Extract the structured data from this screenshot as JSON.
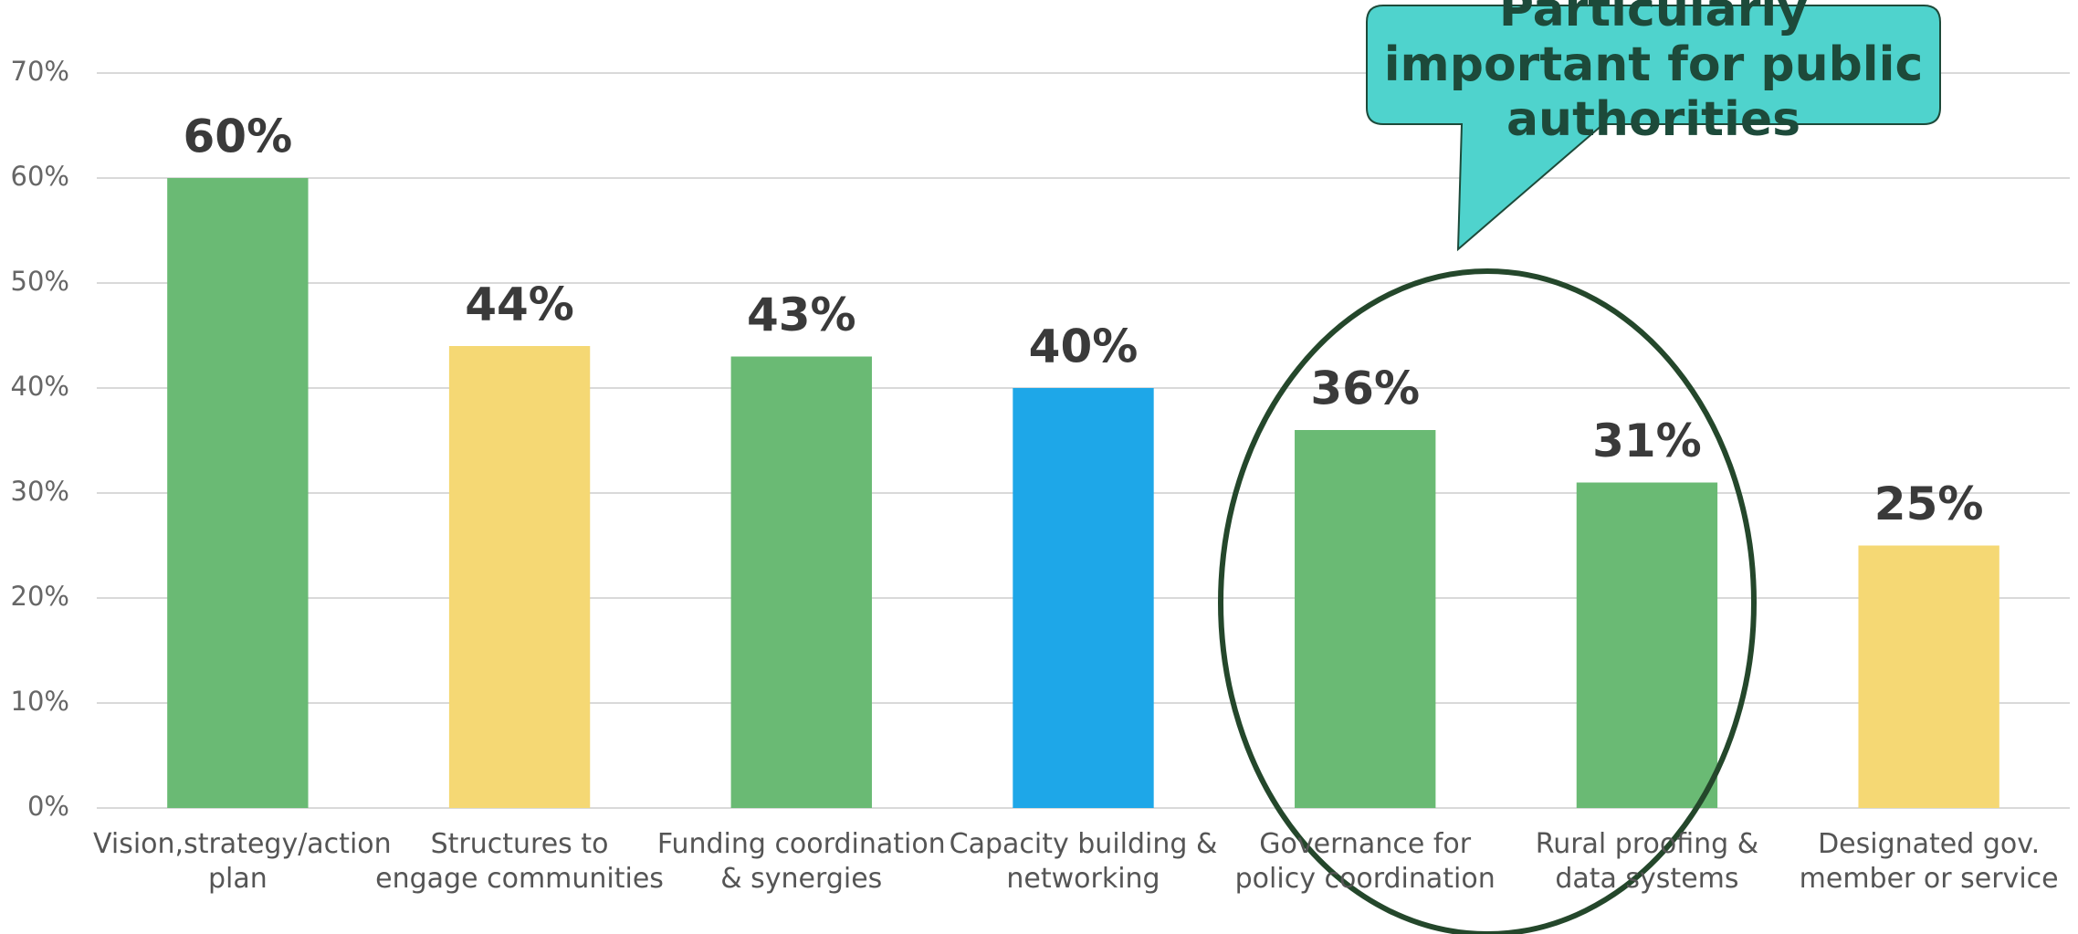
{
  "chart_data": {
    "type": "bar",
    "categories": [
      "Vision,strategy/action plan",
      "Structures to engage communities",
      "Funding coordination & synergies",
      "Capacity building & networking",
      "Governance for policy coordination",
      "Rural proofing & data systems",
      "Designated gov. member or service"
    ],
    "values": [
      60,
      44,
      43,
      40,
      36,
      31,
      25
    ],
    "value_labels": [
      "60%",
      "44%",
      "43%",
      "40%",
      "36%",
      "31%",
      "25%"
    ],
    "colors": [
      "#6aba74",
      "#f5d874",
      "#6aba74",
      "#1ea7e8",
      "#6aba74",
      "#6aba74",
      "#f5d874"
    ],
    "ylim": [
      0,
      70
    ],
    "yticks": [
      {
        "value": 0,
        "label": "0%"
      },
      {
        "value": 10,
        "label": "10%"
      },
      {
        "value": 20,
        "label": "20%"
      },
      {
        "value": 30,
        "label": "30%"
      },
      {
        "value": 40,
        "label": "40%"
      },
      {
        "value": 50,
        "label": "50%"
      },
      {
        "value": 60,
        "label": "60%"
      },
      {
        "value": 70,
        "label": "70%"
      }
    ],
    "grid": true,
    "annotation": "Particularly important for public authorities"
  }
}
